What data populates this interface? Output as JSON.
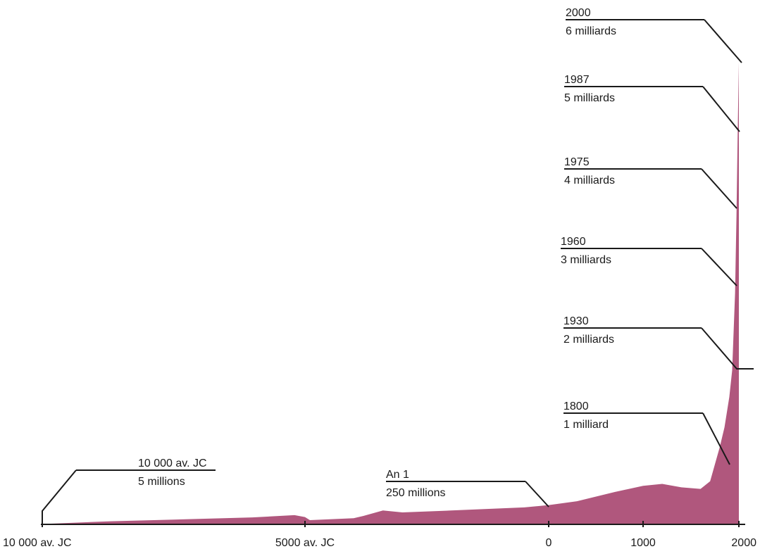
{
  "chart_data": {
    "type": "area",
    "color": "#b0577d",
    "title": "",
    "xlabel": "",
    "ylabel": "",
    "x_ticks": [
      {
        "x": -10000,
        "label": "10 000 av. JC"
      },
      {
        "x": -5000,
        "label": "5000 av. JC"
      },
      {
        "x": 0,
        "label": "0"
      },
      {
        "x": 1000,
        "label": "1000"
      },
      {
        "x": 2000,
        "label": "2000"
      }
    ],
    "series": [
      {
        "values": [
          {
            "x": -10000,
            "y": 5
          },
          {
            "x": -8700,
            "y": 40
          },
          {
            "x": -7500,
            "y": 62
          },
          {
            "x": -6000,
            "y": 90
          },
          {
            "x": -5200,
            "y": 120
          },
          {
            "x": -5000,
            "y": 95
          },
          {
            "x": -4900,
            "y": 55
          },
          {
            "x": -4000,
            "y": 80
          },
          {
            "x": -3800,
            "y": 110
          },
          {
            "x": -3400,
            "y": 180
          },
          {
            "x": -3000,
            "y": 155
          },
          {
            "x": -2000,
            "y": 180
          },
          {
            "x": -500,
            "y": 220
          },
          {
            "x": 0,
            "y": 250
          },
          {
            "x": 300,
            "y": 300
          },
          {
            "x": 700,
            "y": 420
          },
          {
            "x": 1000,
            "y": 500
          },
          {
            "x": 1200,
            "y": 525
          },
          {
            "x": 1400,
            "y": 480
          },
          {
            "x": 1600,
            "y": 460
          },
          {
            "x": 1700,
            "y": 560
          },
          {
            "x": 1800,
            "y": 1000
          },
          {
            "x": 1850,
            "y": 1260
          },
          {
            "x": 1900,
            "y": 1650
          },
          {
            "x": 1930,
            "y": 2000
          },
          {
            "x": 1960,
            "y": 3000
          },
          {
            "x": 1975,
            "y": 4000
          },
          {
            "x": 1987,
            "y": 5000
          },
          {
            "x": 2000,
            "y": 6000
          }
        ]
      }
    ],
    "annotations": [
      {
        "year": "10 000 av. JC",
        "population": "5 millions",
        "x": -10000,
        "y": 5
      },
      {
        "year": "An 1",
        "population": "250 millions",
        "x": 0,
        "y": 250
      },
      {
        "year": "1800",
        "population": "1 milliard",
        "x": 1800,
        "y": 1000
      },
      {
        "year": "1930",
        "population": "2 milliards",
        "x": 1930,
        "y": 2000
      },
      {
        "year": "1960",
        "population": "3 milliards",
        "x": 1960,
        "y": 3000
      },
      {
        "year": "1975",
        "population": "4 milliards",
        "x": 1975,
        "y": 4000
      },
      {
        "year": "1987",
        "population": "5 milliards",
        "x": 1987,
        "y": 5000
      },
      {
        "year": "2000",
        "population": "6 milliards",
        "x": 2000,
        "y": 6000
      }
    ]
  }
}
